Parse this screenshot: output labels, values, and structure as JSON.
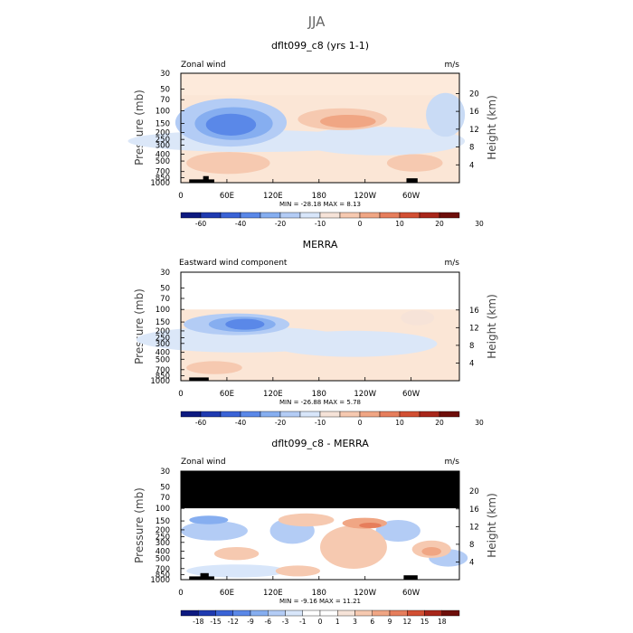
{
  "page_title": "JJA",
  "chart_data": [
    {
      "type": "heatmap",
      "title": "dflt099_c8 (yrs 1-1)",
      "left_label": "Zonal wind",
      "units": "m/s",
      "ylabel": "Pressure (mb)",
      "ylabel_right": "Height (km)",
      "xticks": [
        "0",
        "60E",
        "120E",
        "180",
        "120W",
        "60W"
      ],
      "yticks": [
        "30",
        "50",
        "70",
        "100",
        "150",
        "200",
        "250",
        "300",
        "400",
        "500",
        "700",
        "850",
        "1000"
      ],
      "height_ticks": [
        "20",
        "16",
        "12",
        "8",
        "4"
      ],
      "stats": "MIN = -28.18   MAX =    8.13",
      "min": -28.18,
      "max": 8.13,
      "colorbar_labels": [
        "-60",
        "-40",
        "-20",
        "-10",
        "0",
        "10",
        "20",
        "30"
      ]
    },
    {
      "type": "heatmap",
      "title": "MERRA",
      "left_label": "Eastward wind component",
      "units": "m/s",
      "ylabel": "Pressure (mb)",
      "ylabel_right": "Height (km)",
      "xticks": [
        "0",
        "60E",
        "120E",
        "180",
        "120W",
        "60W"
      ],
      "yticks": [
        "30",
        "50",
        "70",
        "100",
        "150",
        "200",
        "250",
        "300",
        "400",
        "500",
        "700",
        "850",
        "1000"
      ],
      "height_ticks": [
        "16",
        "12",
        "8",
        "4"
      ],
      "stats": "MIN = -26.88   MAX =    5.78",
      "min": -26.88,
      "max": 5.78,
      "colorbar_labels": [
        "-60",
        "-40",
        "-20",
        "-10",
        "0",
        "10",
        "20",
        "30"
      ]
    },
    {
      "type": "heatmap",
      "title": "dflt099_c8 - MERRA",
      "left_label": "Zonal wind",
      "units": "m/s",
      "ylabel": "Pressure (mb)",
      "ylabel_right": "Height (km)",
      "xticks": [
        "0",
        "60E",
        "120E",
        "180",
        "120W",
        "60W"
      ],
      "yticks": [
        "30",
        "50",
        "70",
        "100",
        "150",
        "200",
        "250",
        "300",
        "400",
        "500",
        "700",
        "850",
        "1000"
      ],
      "height_ticks": [
        "20",
        "16",
        "12",
        "8",
        "4"
      ],
      "stats": "MIN =  -9.16   MAX =  11.21",
      "min": -9.16,
      "max": 11.21,
      "colorbar_labels": [
        "-18",
        "-15",
        "-12",
        "-9",
        "-6",
        "-3",
        "-1",
        "0",
        "1",
        "3",
        "6",
        "9",
        "12",
        "15",
        "18"
      ]
    }
  ],
  "colors": {
    "scale": [
      "#0d1a80",
      "#1f3ab0",
      "#3a63d6",
      "#5a88e8",
      "#86aef0",
      "#b3ccf5",
      "#d8e6fa",
      "#f6e3d8",
      "#f6c9b0",
      "#f0a684",
      "#e67e5c",
      "#d24f33",
      "#a8261a",
      "#6e0e0a"
    ],
    "diff_scale": [
      "#0d1a80",
      "#1f3ab0",
      "#3a63d6",
      "#5a88e8",
      "#86aef0",
      "#b3ccf5",
      "#d8e6fa",
      "#ffffff",
      "#ffffff",
      "#f6e3d8",
      "#f6c9b0",
      "#f0a684",
      "#e67e5c",
      "#d24f33",
      "#a8261a",
      "#6e0e0a"
    ],
    "missing": "#000000"
  }
}
